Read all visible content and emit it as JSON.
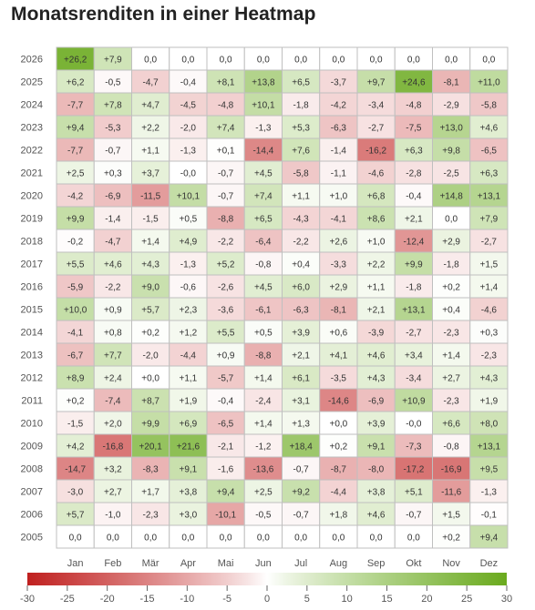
{
  "title": "Monatsrenditen in einer Heatmap",
  "chart_data": {
    "type": "heatmap",
    "title": "Monatsrenditen in einer Heatmap",
    "months": [
      "Jan",
      "Feb",
      "Mär",
      "Apr",
      "Mai",
      "Jun",
      "Jul",
      "Aug",
      "Sep",
      "Okt",
      "Nov",
      "Dez"
    ],
    "years": [
      "2026",
      "2025",
      "2024",
      "2023",
      "2022",
      "2021",
      "2020",
      "2019",
      "2018",
      "2017",
      "2016",
      "2015",
      "2014",
      "2013",
      "2012",
      "2011",
      "2010",
      "2009",
      "2008",
      "2007",
      "2006",
      "2005"
    ],
    "values": [
      [
        "+26,2",
        "+7,9",
        "0,0",
        "0,0",
        "0,0",
        "0,0",
        "0,0",
        "0,0",
        "0,0",
        "0,0",
        "0,0",
        "0,0"
      ],
      [
        "+6,2",
        "-0,5",
        "-4,7",
        "-0,4",
        "+8,1",
        "+13,8",
        "+6,5",
        "-3,7",
        "+9,7",
        "+24,6",
        "-8,1",
        "+11,0"
      ],
      [
        "-7,7",
        "+7,8",
        "+4,7",
        "-4,5",
        "-4,8",
        "+10,1",
        "-1,8",
        "-4,2",
        "-3,4",
        "-4,8",
        "-2,9",
        "-5,8"
      ],
      [
        "+9,4",
        "-5,3",
        "+2,2",
        "-2,0",
        "+7,4",
        "-1,3",
        "+5,3",
        "-6,3",
        "-2,7",
        "-7,5",
        "+13,0",
        "+4,6"
      ],
      [
        "-7,7",
        "-0,7",
        "+1,1",
        "-1,3",
        "+0,1",
        "-14,4",
        "+7,6",
        "-1,4",
        "-16,2",
        "+6,3",
        "+9,8",
        "-6,5"
      ],
      [
        "+2,5",
        "+0,3",
        "+3,7",
        "-0,0",
        "-0,7",
        "+4,5",
        "-5,8",
        "-1,1",
        "-4,6",
        "-2,8",
        "-2,5",
        "+6,3"
      ],
      [
        "-4,2",
        "-6,9",
        "-11,5",
        "+10,1",
        "-0,7",
        "+7,4",
        "+1,1",
        "+1,0",
        "+6,8",
        "-0,4",
        "+14,8",
        "+13,1"
      ],
      [
        "+9,9",
        "-1,4",
        "-1,5",
        "+0,5",
        "-8,8",
        "+6,5",
        "-4,3",
        "-4,1",
        "+8,6",
        "+2,1",
        "0,0",
        "+7,9"
      ],
      [
        "-0,2",
        "-4,7",
        "+1,4",
        "+4,9",
        "-2,2",
        "-6,4",
        "-2,2",
        "+2,6",
        "+1,0",
        "-12,4",
        "+2,9",
        "-2,7"
      ],
      [
        "+5,5",
        "+4,6",
        "+4,3",
        "-1,3",
        "+5,2",
        "-0,8",
        "+0,4",
        "-3,3",
        "+2,2",
        "+9,9",
        "-1,8",
        "+1,5"
      ],
      [
        "-5,9",
        "-2,2",
        "+9,0",
        "-0,6",
        "-2,6",
        "+4,5",
        "+6,0",
        "+2,9",
        "+1,1",
        "-1,8",
        "+0,2",
        "+1,4"
      ],
      [
        "+10,0",
        "+0,9",
        "+5,7",
        "+2,3",
        "-3,6",
        "-6,1",
        "-6,3",
        "-8,1",
        "+2,1",
        "+13,1",
        "+0,4",
        "-4,6"
      ],
      [
        "-4,1",
        "+0,8",
        "+0,2",
        "+1,2",
        "+5,5",
        "+0,5",
        "+3,9",
        "+0,6",
        "-3,9",
        "-2,7",
        "-2,3",
        "+0,3"
      ],
      [
        "-6,7",
        "+7,7",
        "-2,0",
        "-4,4",
        "+0,9",
        "-8,8",
        "+2,1",
        "+4,1",
        "+4,6",
        "+3,4",
        "+1,4",
        "-2,3"
      ],
      [
        "+8,9",
        "+2,4",
        "+0,0",
        "+1,1",
        "-5,7",
        "+1,4",
        "+6,1",
        "-3,5",
        "+4,3",
        "-3,4",
        "+2,7",
        "+4,3"
      ],
      [
        "+0,2",
        "-7,4",
        "+8,7",
        "+1,9",
        "-0,4",
        "-2,4",
        "+3,1",
        "-14,6",
        "-6,9",
        "+10,9",
        "-2,3",
        "+1,9"
      ],
      [
        "-1,5",
        "+2,0",
        "+9,9",
        "+6,9",
        "-6,5",
        "+1,4",
        "+1,3",
        "+0,0",
        "+3,9",
        "-0,0",
        "+6,6",
        "+8,0"
      ],
      [
        "+4,2",
        "-16,8",
        "+20,1",
        "+21,6",
        "-2,1",
        "-1,2",
        "+18,4",
        "+0,2",
        "+9,1",
        "-7,3",
        "-0,8",
        "+13,1"
      ],
      [
        "-14,7",
        "+3,2",
        "-8,3",
        "+9,1",
        "-1,6",
        "-13,6",
        "-0,7",
        "-8,7",
        "-8,0",
        "-17,2",
        "-16,9",
        "+9,5"
      ],
      [
        "-3,0",
        "+2,7",
        "+1,7",
        "+3,8",
        "+9,4",
        "+2,5",
        "+9,2",
        "-4,4",
        "+3,8",
        "+5,1",
        "-11,6",
        "-1,3"
      ],
      [
        "+5,7",
        "-1,0",
        "-2,3",
        "+3,0",
        "-10,1",
        "-0,5",
        "-0,7",
        "+1,8",
        "+4,6",
        "-0,7",
        "+1,5",
        "-0,1"
      ],
      [
        "0,0",
        "0,0",
        "0,0",
        "0,0",
        "0,0",
        "0,0",
        "0,0",
        "0,0",
        "0,0",
        "0,0",
        "+0,2",
        "+9,4"
      ]
    ],
    "color_scale": {
      "min": -30,
      "max": 30,
      "ticks": [
        "-30",
        "-25",
        "-20",
        "-15",
        "-10",
        "-5",
        "0",
        "5",
        "10",
        "15",
        "20",
        "25",
        "30"
      ],
      "negative_color": "#c0201f",
      "neutral_color": "#ffffff",
      "positive_color": "#6aaa1e"
    },
    "colors": {
      "title": "#222222",
      "text": "#333333",
      "axis_text": "#555555",
      "cell_border": "#bfbfbf"
    }
  }
}
